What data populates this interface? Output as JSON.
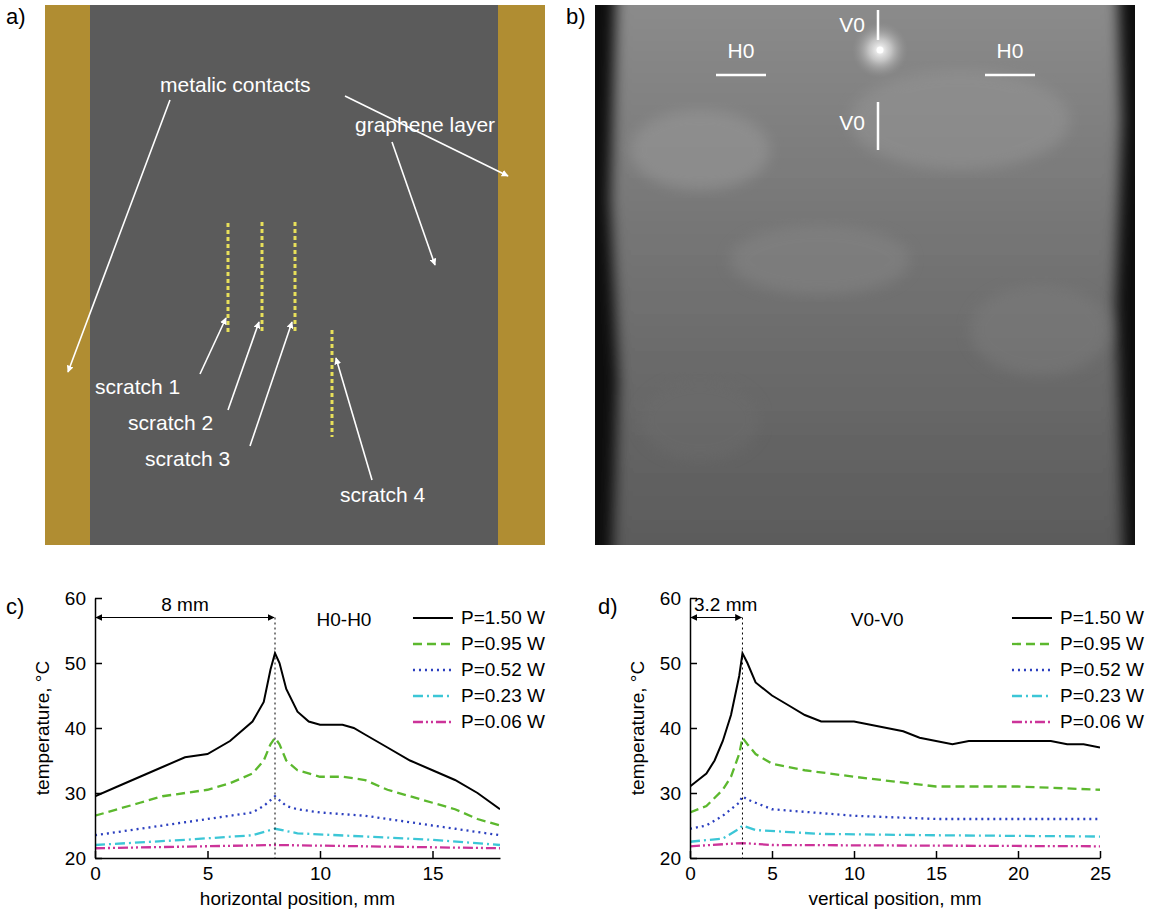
{
  "panel_labels": [
    "a)",
    "b)",
    "c)",
    "d)"
  ],
  "diagram": {
    "contacts_label": "metalic contacts",
    "layer_label": "graphene layer",
    "scratches": [
      "scratch 1",
      "scratch 2",
      "scratch 3",
      "scratch 4"
    ]
  },
  "image": {
    "h_markers": [
      "H0",
      "H0"
    ],
    "v_markers": [
      "V0",
      "V0"
    ]
  },
  "chart_data": [
    {
      "type": "line",
      "title": "H0-H0",
      "x_label": "horizontal position, mm",
      "y_label": "temperature, °C",
      "xlim": [
        0,
        18
      ],
      "xticks": [
        0,
        5,
        10,
        15
      ],
      "ylim": [
        20,
        60
      ],
      "yticks": [
        20,
        30,
        40,
        50,
        60
      ],
      "legend": "top right",
      "annotations": [
        {
          "text": "8 mm",
          "x": [
            0,
            8
          ],
          "y": 57
        }
      ],
      "series": [
        {
          "name": "P=1.50 W",
          "color": "#000000",
          "line_style": "solid",
          "x": [
            0,
            1,
            2,
            3,
            4,
            5,
            6,
            7,
            7.5,
            7.8,
            8,
            8.2,
            8.5,
            9,
            9.5,
            10,
            11,
            11.5,
            12,
            13,
            14,
            15,
            16,
            17,
            18
          ],
          "values": [
            29.5,
            31,
            32.5,
            34,
            35.5,
            36,
            38,
            41,
            44,
            49,
            51.5,
            50,
            46,
            42.5,
            41,
            40.5,
            40.5,
            40,
            39,
            37,
            35,
            33.5,
            32,
            30,
            27.5
          ]
        },
        {
          "name": "P=0.95 W",
          "color": "#5cb82e",
          "line_style": "dashed",
          "x": [
            0,
            1,
            2,
            3,
            4,
            5,
            6,
            7,
            7.5,
            7.8,
            8,
            8.2,
            8.5,
            9,
            10,
            11,
            12,
            13,
            14,
            15,
            16,
            17,
            18
          ],
          "values": [
            26.5,
            27.5,
            28.5,
            29.5,
            30,
            30.5,
            31.5,
            33,
            35,
            37.5,
            38.5,
            37.5,
            35,
            33.5,
            32.5,
            32.5,
            32,
            30.5,
            29.5,
            28.5,
            27.5,
            26,
            25
          ]
        },
        {
          "name": "P=0.52 W",
          "color": "#2b3fbf",
          "line_style": "dotted",
          "x": [
            0,
            2,
            4,
            6,
            7,
            7.5,
            8,
            8.5,
            9,
            10,
            12,
            14,
            16,
            18
          ],
          "values": [
            23.5,
            24.5,
            25.5,
            26.5,
            27,
            28,
            29.5,
            28,
            27.5,
            27,
            26.5,
            25.5,
            24.5,
            23.5
          ]
        },
        {
          "name": "P=0.23 W",
          "color": "#3cc6d6",
          "line_style": "dashdot",
          "x": [
            0,
            4,
            7,
            8,
            9,
            12,
            15,
            18
          ],
          "values": [
            22,
            22.8,
            23.5,
            24.5,
            23.8,
            23.3,
            22.8,
            22
          ]
        },
        {
          "name": "P=0.06 W",
          "color": "#cc3399",
          "line_style": "dashdotdot",
          "x": [
            0,
            8,
            18
          ],
          "values": [
            21.5,
            22,
            21.5
          ]
        }
      ]
    },
    {
      "type": "line",
      "title": "V0-V0",
      "x_label": "vertical position, mm",
      "y_label": "temperature, °C",
      "xlim": [
        0,
        25
      ],
      "xticks": [
        0,
        5,
        10,
        15,
        20,
        25
      ],
      "ylim": [
        20,
        60
      ],
      "yticks": [
        20,
        30,
        40,
        50,
        60
      ],
      "legend": "top right",
      "annotations": [
        {
          "text": "3.2 mm",
          "x": [
            0,
            3.2
          ],
          "y": 57
        }
      ],
      "series": [
        {
          "name": "P=1.50 W",
          "color": "#000000",
          "line_style": "solid",
          "x": [
            0,
            0.5,
            1,
            1.5,
            2,
            2.5,
            3,
            3.2,
            3.5,
            4,
            5,
            6,
            7,
            8,
            9,
            10,
            11,
            12,
            13,
            14,
            15,
            16,
            17,
            18,
            19,
            20,
            21,
            22,
            23,
            24,
            25
          ],
          "values": [
            31,
            32,
            33,
            35,
            38,
            42,
            48,
            51.5,
            50,
            47,
            45,
            43.5,
            42,
            41,
            41,
            41,
            40.5,
            40,
            39.5,
            38.5,
            38,
            37.5,
            38,
            38,
            38,
            38,
            38,
            38,
            37.5,
            37.5,
            37
          ]
        },
        {
          "name": "P=0.95 W",
          "color": "#5cb82e",
          "line_style": "dashed",
          "x": [
            0,
            1,
            2,
            2.5,
            3,
            3.2,
            3.5,
            4,
            5,
            7,
            10,
            15,
            20,
            25
          ],
          "values": [
            27,
            28,
            30.5,
            32.5,
            36,
            38.5,
            37.5,
            36,
            34.5,
            33.5,
            32.5,
            31,
            31,
            30.5
          ]
        },
        {
          "name": "P=0.52 W",
          "color": "#2b3fbf",
          "line_style": "dotted",
          "x": [
            0,
            1,
            2,
            3,
            3.2,
            3.5,
            5,
            10,
            15,
            20,
            25
          ],
          "values": [
            24.5,
            25,
            26.5,
            28.5,
            29.5,
            29,
            27.5,
            26.5,
            26,
            26,
            26
          ]
        },
        {
          "name": "P=0.23 W",
          "color": "#3cc6d6",
          "line_style": "dashdot",
          "x": [
            0,
            2,
            3,
            3.2,
            4,
            8,
            15,
            25
          ],
          "values": [
            22.5,
            23,
            24.5,
            25,
            24.3,
            23.7,
            23.5,
            23.3
          ]
        },
        {
          "name": "P=0.06 W",
          "color": "#cc3399",
          "line_style": "dashdotdot",
          "x": [
            0,
            3.2,
            5,
            25
          ],
          "values": [
            21.8,
            22.3,
            22,
            21.8
          ]
        }
      ]
    }
  ]
}
